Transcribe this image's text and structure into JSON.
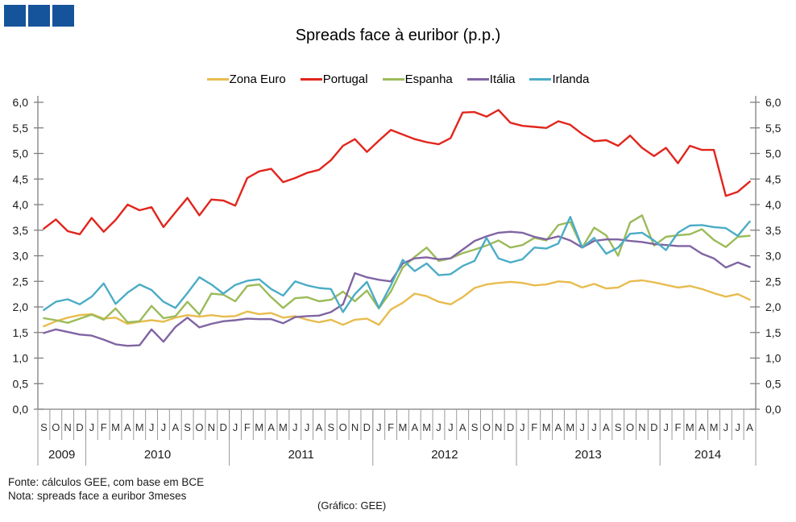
{
  "logo": {
    "squares": 3,
    "color": "#15549b"
  },
  "chart": {
    "title": "Spreads face à euribor (p.p.)"
  },
  "footer": {
    "fonte": "Fonte: cálculos GEE, com base em BCE",
    "nota": "Nota: spreads face a euribor 3meses",
    "grafico": "(Gráfico:  GEE)"
  },
  "chart_data": {
    "type": "line",
    "title": "Spreads face à euribor (p.p.)",
    "xlabel": "",
    "ylabel": "",
    "ylim": [
      0,
      6
    ],
    "ytick_step": 0.5,
    "decimal_separator": ",",
    "grid": false,
    "legend_position": "top-center",
    "axis_color": "#7f7f7f",
    "x_unit": "month",
    "x_start": "Set 2009",
    "x_end": "Ago 2014",
    "month_letters": [
      "S",
      "O",
      "N",
      "D",
      "J",
      "F",
      "M",
      "A",
      "M",
      "J",
      "J",
      "A",
      "S",
      "O",
      "N",
      "D",
      "J",
      "F",
      "M",
      "A",
      "M",
      "J",
      "J",
      "A",
      "S",
      "O",
      "N",
      "D",
      "J",
      "F",
      "M",
      "A",
      "M",
      "J",
      "J",
      "A",
      "S",
      "O",
      "N",
      "D",
      "J",
      "F",
      "M",
      "A",
      "M",
      "J",
      "J",
      "A",
      "S",
      "O",
      "N",
      "D",
      "J",
      "F",
      "M",
      "A",
      "M",
      "J",
      "J",
      "A"
    ],
    "years": [
      {
        "label": "2009",
        "months": 4
      },
      {
        "label": "2010",
        "months": 12
      },
      {
        "label": "2011",
        "months": 12
      },
      {
        "label": "2012",
        "months": 12
      },
      {
        "label": "2013",
        "months": 12
      },
      {
        "label": "2014",
        "months": 8
      }
    ],
    "series": [
      {
        "name": "Zona Euro",
        "color": "#e8bc4f",
        "values": [
          1.62,
          1.72,
          1.79,
          1.84,
          1.86,
          1.77,
          1.79,
          1.67,
          1.71,
          1.74,
          1.71,
          1.79,
          1.84,
          1.81,
          1.84,
          1.81,
          1.82,
          1.91,
          1.86,
          1.88,
          1.79,
          1.82,
          1.75,
          1.7,
          1.75,
          1.65,
          1.75,
          1.77,
          1.65,
          1.95,
          2.08,
          2.26,
          2.21,
          2.1,
          2.05,
          2.19,
          2.37,
          2.44,
          2.47,
          2.49,
          2.47,
          2.42,
          2.44,
          2.5,
          2.48,
          2.38,
          2.45,
          2.36,
          2.38,
          2.5,
          2.52,
          2.48,
          2.43,
          2.38,
          2.41,
          2.35,
          2.27,
          2.2,
          2.25,
          2.14
        ]
      },
      {
        "name": "Portugal",
        "color": "#e1251c",
        "values": [
          3.53,
          3.71,
          3.48,
          3.42,
          3.74,
          3.47,
          3.7,
          4.0,
          3.89,
          3.95,
          3.56,
          3.85,
          4.13,
          3.79,
          4.1,
          4.08,
          3.98,
          4.52,
          4.65,
          4.7,
          4.44,
          4.52,
          4.62,
          4.68,
          4.87,
          5.15,
          5.28,
          5.03,
          5.25,
          5.46,
          5.37,
          5.28,
          5.22,
          5.18,
          5.3,
          5.8,
          5.81,
          5.72,
          5.85,
          5.6,
          5.54,
          5.52,
          5.5,
          5.63,
          5.56,
          5.38,
          5.24,
          5.26,
          5.15,
          5.35,
          5.11,
          4.95,
          5.11,
          4.81,
          5.15,
          5.07,
          5.07,
          4.17,
          4.25,
          4.45
        ]
      },
      {
        "name": "Espanha",
        "color": "#9bbb59",
        "values": [
          1.78,
          1.74,
          1.69,
          1.77,
          1.85,
          1.75,
          1.97,
          1.7,
          1.72,
          2.02,
          1.78,
          1.82,
          2.1,
          1.85,
          2.26,
          2.24,
          2.11,
          2.41,
          2.44,
          2.19,
          1.98,
          2.17,
          2.19,
          2.11,
          2.14,
          2.3,
          2.11,
          2.32,
          1.97,
          2.3,
          2.77,
          2.98,
          3.16,
          2.9,
          2.95,
          3.05,
          3.12,
          3.2,
          3.3,
          3.16,
          3.21,
          3.35,
          3.3,
          3.6,
          3.66,
          3.16,
          3.55,
          3.4,
          3.0,
          3.65,
          3.79,
          3.2,
          3.37,
          3.4,
          3.42,
          3.52,
          3.31,
          3.17,
          3.37,
          3.39
        ]
      },
      {
        "name": "Itália",
        "color": "#8064a2",
        "values": [
          1.49,
          1.56,
          1.51,
          1.46,
          1.44,
          1.36,
          1.27,
          1.24,
          1.25,
          1.56,
          1.32,
          1.61,
          1.79,
          1.6,
          1.67,
          1.72,
          1.74,
          1.77,
          1.76,
          1.76,
          1.68,
          1.8,
          1.82,
          1.83,
          1.9,
          2.05,
          2.66,
          2.58,
          2.53,
          2.5,
          2.85,
          2.95,
          2.97,
          2.93,
          2.95,
          3.12,
          3.29,
          3.38,
          3.45,
          3.47,
          3.45,
          3.37,
          3.32,
          3.38,
          3.3,
          3.16,
          3.29,
          3.32,
          3.32,
          3.29,
          3.27,
          3.23,
          3.21,
          3.19,
          3.19,
          3.04,
          2.95,
          2.77,
          2.87,
          2.78
        ]
      },
      {
        "name": "Irlanda",
        "color": "#4bacc6",
        "values": [
          1.94,
          2.1,
          2.15,
          2.05,
          2.2,
          2.46,
          2.06,
          2.28,
          2.44,
          2.33,
          2.1,
          1.98,
          2.27,
          2.58,
          2.44,
          2.26,
          2.43,
          2.51,
          2.54,
          2.35,
          2.22,
          2.5,
          2.42,
          2.37,
          2.35,
          1.9,
          2.25,
          2.49,
          1.98,
          2.42,
          2.92,
          2.7,
          2.85,
          2.62,
          2.64,
          2.8,
          2.9,
          3.35,
          2.95,
          2.87,
          2.93,
          3.16,
          3.14,
          3.24,
          3.76,
          3.16,
          3.35,
          3.04,
          3.16,
          3.43,
          3.45,
          3.3,
          3.11,
          3.45,
          3.59,
          3.6,
          3.56,
          3.54,
          3.39,
          3.67
        ]
      }
    ]
  }
}
